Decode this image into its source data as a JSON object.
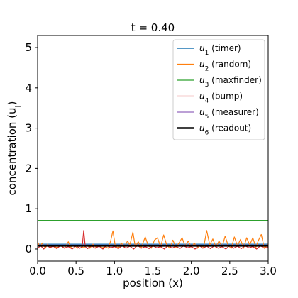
{
  "chart_data": {
    "type": "line",
    "title": "t = 0.40",
    "xlabel": "position (x)",
    "ylabel": "concentration (u",
    "ylabel_sub": "i",
    "ylabel_close": ")",
    "xlim": [
      0.0,
      3.0
    ],
    "ylim": [
      -0.3,
      5.3
    ],
    "xticks": [
      0.0,
      0.5,
      1.0,
      1.5,
      2.0,
      2.5,
      3.0
    ],
    "xtick_labels": [
      "0.0",
      "0.5",
      "1.0",
      "1.5",
      "2.0",
      "2.5",
      "3.0"
    ],
    "yticks": [
      0,
      1,
      2,
      3,
      4,
      5
    ],
    "ytick_labels": [
      "0",
      "1",
      "2",
      "3",
      "4",
      "5"
    ],
    "grid": false,
    "legend_position": "top-right",
    "series": [
      {
        "name": "timer",
        "sub": "1",
        "color": "#1f77b4",
        "width": 1.4,
        "x": [
          0.0,
          0.05,
          0.1,
          0.15,
          0.2,
          0.25,
          0.3,
          0.35,
          0.4,
          0.45,
          0.5,
          0.55,
          0.6,
          0.65,
          0.7,
          0.75,
          0.8,
          0.85,
          0.9,
          0.95,
          1.0,
          1.05,
          1.1,
          1.15,
          1.2,
          1.25,
          1.3,
          1.35,
          1.4,
          1.45,
          1.5,
          1.55,
          1.6,
          1.65,
          1.7,
          1.75,
          1.8,
          1.85,
          1.9,
          1.95,
          2.0,
          2.05,
          2.1,
          2.15,
          2.2,
          2.25,
          2.3,
          2.35,
          2.4,
          2.45,
          2.5,
          2.55,
          2.6,
          2.65,
          2.7,
          2.75,
          2.8,
          2.85,
          2.9,
          2.95,
          3.0
        ],
        "y": [
          0.12,
          0.12,
          0.12,
          0.12,
          0.12,
          0.12,
          0.12,
          0.12,
          0.12,
          0.12,
          0.12,
          0.12,
          0.12,
          0.12,
          0.12,
          0.12,
          0.12,
          0.12,
          0.12,
          0.12,
          0.12,
          0.12,
          0.12,
          0.12,
          0.12,
          0.12,
          0.12,
          0.12,
          0.12,
          0.12,
          0.12,
          0.12,
          0.12,
          0.12,
          0.12,
          0.12,
          0.12,
          0.12,
          0.12,
          0.12,
          0.12,
          0.12,
          0.12,
          0.12,
          0.12,
          0.12,
          0.12,
          0.12,
          0.12,
          0.12,
          0.12,
          0.12,
          0.12,
          0.12,
          0.12,
          0.12,
          0.12,
          0.12,
          0.12,
          0.12,
          0.12
        ]
      },
      {
        "name": "random",
        "sub": "2",
        "color": "#ff7f0e",
        "width": 1.2,
        "x": [
          0.0,
          0.03,
          0.06,
          0.1,
          0.13,
          0.17,
          0.2,
          0.25,
          0.3,
          0.35,
          0.4,
          0.43,
          0.47,
          0.52,
          0.56,
          0.6,
          0.64,
          0.68,
          0.72,
          0.76,
          0.8,
          0.84,
          0.88,
          0.92,
          0.95,
          0.98,
          1.01,
          1.05,
          1.09,
          1.13,
          1.17,
          1.2,
          1.24,
          1.27,
          1.31,
          1.35,
          1.4,
          1.44,
          1.48,
          1.52,
          1.56,
          1.6,
          1.64,
          1.68,
          1.72,
          1.76,
          1.8,
          1.84,
          1.88,
          1.92,
          1.96,
          2.0,
          2.04,
          2.08,
          2.12,
          2.16,
          2.2,
          2.24,
          2.28,
          2.32,
          2.36,
          2.4,
          2.44,
          2.48,
          2.52,
          2.56,
          2.6,
          2.64,
          2.68,
          2.72,
          2.76,
          2.8,
          2.84,
          2.87,
          2.91,
          2.95,
          3.0
        ],
        "y": [
          0.18,
          0.05,
          0.15,
          0.02,
          0.12,
          0.04,
          0.1,
          0.03,
          0.08,
          0.02,
          0.18,
          0.04,
          0.1,
          0.02,
          0.08,
          0.03,
          0.1,
          0.02,
          0.12,
          0.04,
          0.1,
          0.03,
          0.06,
          0.02,
          0.2,
          0.45,
          0.08,
          0.02,
          0.15,
          0.05,
          0.2,
          0.1,
          0.42,
          0.06,
          0.18,
          0.04,
          0.3,
          0.08,
          0.02,
          0.22,
          0.28,
          0.05,
          0.35,
          0.1,
          0.02,
          0.22,
          0.04,
          0.15,
          0.28,
          0.06,
          0.2,
          0.05,
          0.15,
          0.02,
          0.1,
          0.04,
          0.46,
          0.1,
          0.25,
          0.04,
          0.2,
          0.05,
          0.32,
          0.08,
          0.02,
          0.3,
          0.08,
          0.24,
          0.02,
          0.28,
          0.1,
          0.28,
          0.04,
          0.2,
          0.36,
          0.02,
          0.12
        ]
      },
      {
        "name": "maxfinder",
        "sub": "3",
        "color": "#2ca02c",
        "width": 1.2,
        "x": [
          0.0,
          3.0
        ],
        "y": [
          0.71,
          0.71
        ]
      },
      {
        "name": "bump",
        "sub": "4",
        "color": "#d62728",
        "width": 1.2,
        "x": [
          0.0,
          0.04,
          0.08,
          0.12,
          0.16,
          0.2,
          0.25,
          0.3,
          0.35,
          0.4,
          0.45,
          0.5,
          0.55,
          0.58,
          0.6,
          0.62,
          0.65,
          0.7,
          0.75,
          0.8,
          0.85,
          0.9,
          0.95,
          1.0,
          1.05,
          1.1,
          1.15,
          1.2,
          1.25,
          1.3,
          1.35,
          1.4,
          1.45,
          1.5,
          1.55,
          1.6,
          1.65,
          1.7,
          1.75,
          1.8,
          1.85,
          1.9,
          1.95,
          2.0,
          2.05,
          2.1,
          2.15,
          2.2,
          2.25,
          2.3,
          2.35,
          2.4,
          2.45,
          2.5,
          2.55,
          2.6,
          2.65,
          2.7,
          2.75,
          2.8,
          2.85,
          2.9,
          2.95,
          3.0
        ],
        "y": [
          0.02,
          0.08,
          0.0,
          0.1,
          0.03,
          0.07,
          0.01,
          0.09,
          0.02,
          0.06,
          0.0,
          0.08,
          0.02,
          0.06,
          0.46,
          0.06,
          0.01,
          0.08,
          0.02,
          0.07,
          0.0,
          0.09,
          0.03,
          0.06,
          0.01,
          0.08,
          0.02,
          0.07,
          0.0,
          0.09,
          0.02,
          0.06,
          0.01,
          0.08,
          0.03,
          0.06,
          0.0,
          0.09,
          0.02,
          0.07,
          0.01,
          0.08,
          0.03,
          0.06,
          0.0,
          0.09,
          0.02,
          0.07,
          0.01,
          0.08,
          0.02,
          0.06,
          0.0,
          0.09,
          0.02,
          0.07,
          0.01,
          0.08,
          0.03,
          0.06,
          0.0,
          0.08,
          0.02,
          0.05
        ]
      },
      {
        "name": "measurer",
        "sub": "5",
        "color": "#9467bd",
        "width": 1.2,
        "x": [
          0.0,
          3.0
        ],
        "y": [
          0.1,
          0.1
        ]
      },
      {
        "name": "readout",
        "sub": "6",
        "color": "#000000",
        "width": 2.4,
        "x": [
          0.0,
          3.0
        ],
        "y": [
          0.08,
          0.08
        ]
      }
    ]
  }
}
